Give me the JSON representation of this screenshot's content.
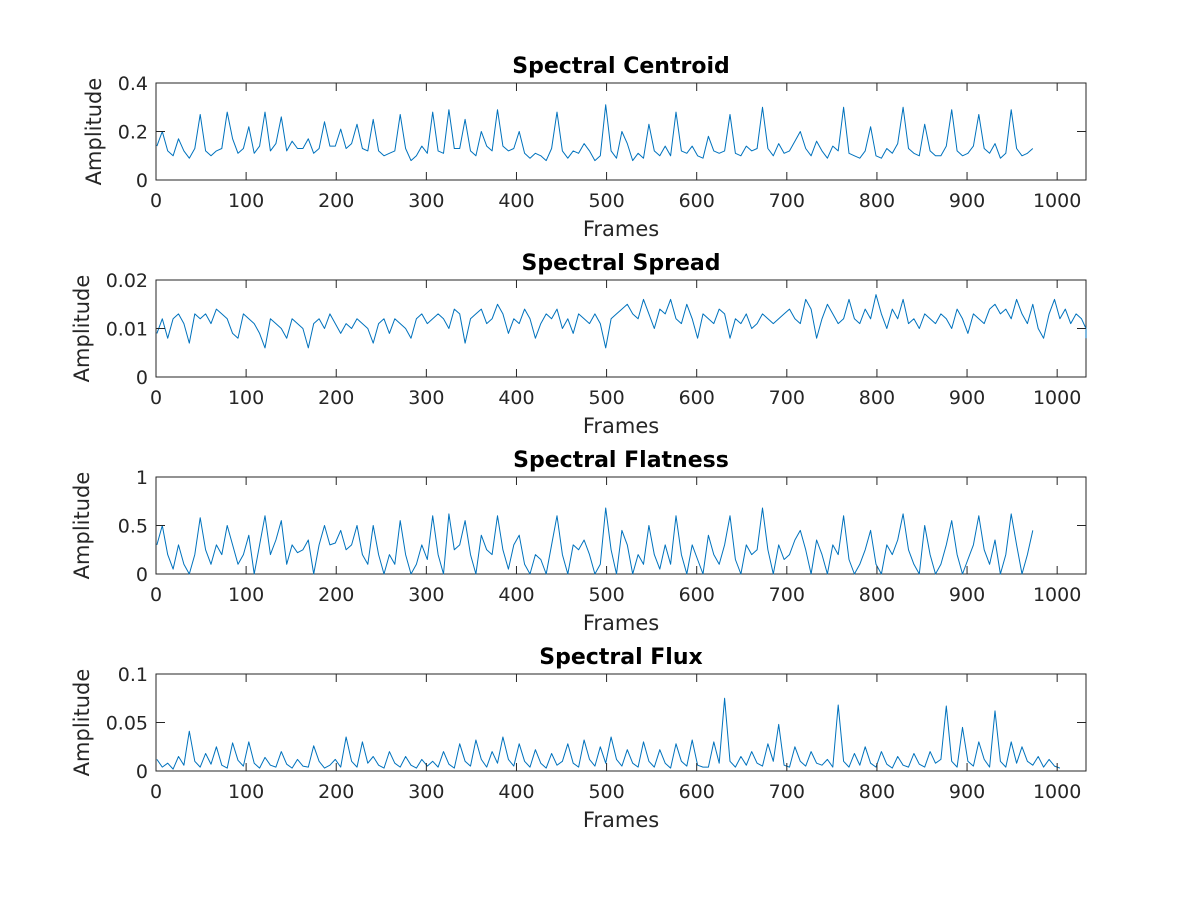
{
  "theme": {
    "line_color": "#0072bd",
    "axis_color": "#262626"
  },
  "chart_data": [
    {
      "type": "line",
      "title": "Spectral Centroid",
      "xlabel": "Frames",
      "ylabel": "Amplitude",
      "xlim": [
        0,
        1032
      ],
      "ylim": [
        0,
        0.4
      ],
      "xticks": [
        0,
        100,
        200,
        300,
        400,
        500,
        600,
        700,
        800,
        900,
        1000
      ],
      "xtick_labels": [
        "0",
        "100",
        "200",
        "300",
        "400",
        "500",
        "600",
        "700",
        "800",
        "900",
        "1000"
      ],
      "yticks": [
        0,
        0.2,
        0.4
      ],
      "ytick_labels": [
        "0",
        "0.2",
        "0.4"
      ],
      "grid": false,
      "series": [
        {
          "x_start": 1,
          "x_step": 6,
          "values": [
            0.14,
            0.2,
            0.12,
            0.1,
            0.17,
            0.12,
            0.09,
            0.13,
            0.27,
            0.12,
            0.1,
            0.12,
            0.13,
            0.28,
            0.17,
            0.11,
            0.13,
            0.22,
            0.11,
            0.14,
            0.28,
            0.12,
            0.15,
            0.26,
            0.12,
            0.16,
            0.13,
            0.13,
            0.17,
            0.11,
            0.13,
            0.24,
            0.14,
            0.14,
            0.21,
            0.13,
            0.15,
            0.23,
            0.13,
            0.12,
            0.25,
            0.12,
            0.1,
            0.11,
            0.12,
            0.27,
            0.13,
            0.08,
            0.1,
            0.14,
            0.11,
            0.28,
            0.12,
            0.11,
            0.29,
            0.13,
            0.13,
            0.25,
            0.12,
            0.1,
            0.2,
            0.14,
            0.12,
            0.29,
            0.14,
            0.12,
            0.13,
            0.2,
            0.11,
            0.09,
            0.11,
            0.1,
            0.08,
            0.13,
            0.28,
            0.12,
            0.09,
            0.12,
            0.11,
            0.15,
            0.12,
            0.08,
            0.1,
            0.31,
            0.12,
            0.09,
            0.2,
            0.15,
            0.08,
            0.11,
            0.09,
            0.23,
            0.12,
            0.1,
            0.14,
            0.1,
            0.28,
            0.12,
            0.11,
            0.14,
            0.1,
            0.09,
            0.18,
            0.12,
            0.11,
            0.12,
            0.27,
            0.11,
            0.1,
            0.14,
            0.12,
            0.13,
            0.3,
            0.13,
            0.1,
            0.15,
            0.11,
            0.12,
            0.16,
            0.2,
            0.13,
            0.1,
            0.16,
            0.12,
            0.09,
            0.14,
            0.12,
            0.3,
            0.11,
            0.1,
            0.09,
            0.12,
            0.22,
            0.1,
            0.09,
            0.13,
            0.11,
            0.15,
            0.3,
            0.13,
            0.11,
            0.1,
            0.23,
            0.12,
            0.1,
            0.1,
            0.14,
            0.29,
            0.12,
            0.1,
            0.11,
            0.14,
            0.27,
            0.13,
            0.11,
            0.15,
            0.09,
            0.11,
            0.29,
            0.13,
            0.1,
            0.11,
            0.13
          ]
        }
      ]
    },
    {
      "type": "line",
      "title": "Spectral Spread",
      "xlabel": "Frames",
      "ylabel": "Amplitude",
      "xlim": [
        0,
        1032
      ],
      "ylim": [
        0,
        0.02
      ],
      "xticks": [
        0,
        100,
        200,
        300,
        400,
        500,
        600,
        700,
        800,
        900,
        1000
      ],
      "xtick_labels": [
        "0",
        "100",
        "200",
        "300",
        "400",
        "500",
        "600",
        "700",
        "800",
        "900",
        "1000"
      ],
      "yticks": [
        0,
        0.01,
        0.02
      ],
      "ytick_labels": [
        "0",
        "0.01",
        "0.02"
      ],
      "grid": false,
      "series": [
        {
          "x_start": 1,
          "x_step": 6,
          "values": [
            0.009,
            0.012,
            0.008,
            0.012,
            0.013,
            0.011,
            0.007,
            0.013,
            0.012,
            0.013,
            0.011,
            0.014,
            0.013,
            0.012,
            0.009,
            0.008,
            0.013,
            0.012,
            0.011,
            0.009,
            0.006,
            0.012,
            0.011,
            0.01,
            0.008,
            0.012,
            0.011,
            0.01,
            0.006,
            0.011,
            0.012,
            0.01,
            0.013,
            0.011,
            0.009,
            0.011,
            0.01,
            0.012,
            0.011,
            0.01,
            0.007,
            0.011,
            0.012,
            0.009,
            0.012,
            0.011,
            0.01,
            0.008,
            0.012,
            0.013,
            0.011,
            0.012,
            0.013,
            0.012,
            0.01,
            0.014,
            0.013,
            0.007,
            0.012,
            0.013,
            0.014,
            0.011,
            0.012,
            0.015,
            0.013,
            0.009,
            0.012,
            0.011,
            0.014,
            0.012,
            0.008,
            0.011,
            0.013,
            0.012,
            0.014,
            0.01,
            0.012,
            0.009,
            0.013,
            0.012,
            0.011,
            0.013,
            0.011,
            0.006,
            0.012,
            0.013,
            0.014,
            0.015,
            0.013,
            0.012,
            0.016,
            0.013,
            0.01,
            0.014,
            0.013,
            0.016,
            0.012,
            0.011,
            0.015,
            0.012,
            0.008,
            0.013,
            0.012,
            0.011,
            0.014,
            0.013,
            0.008,
            0.012,
            0.011,
            0.013,
            0.01,
            0.011,
            0.013,
            0.012,
            0.011,
            0.012,
            0.013,
            0.014,
            0.012,
            0.011,
            0.016,
            0.014,
            0.008,
            0.012,
            0.015,
            0.013,
            0.011,
            0.012,
            0.016,
            0.012,
            0.011,
            0.014,
            0.012,
            0.017,
            0.013,
            0.01,
            0.014,
            0.012,
            0.016,
            0.011,
            0.012,
            0.01,
            0.013,
            0.012,
            0.011,
            0.013,
            0.012,
            0.01,
            0.014,
            0.012,
            0.009,
            0.013,
            0.012,
            0.011,
            0.014,
            0.015,
            0.013,
            0.014,
            0.012,
            0.016,
            0.013,
            0.011,
            0.015,
            0.01,
            0.008,
            0.013,
            0.016,
            0.012,
            0.014,
            0.011,
            0.013,
            0.012,
            0.01,
            0.008
          ]
        }
      ]
    },
    {
      "type": "line",
      "title": "Spectral Flatness",
      "xlabel": "Frames",
      "ylabel": "Amplitude",
      "xlim": [
        0,
        1032
      ],
      "ylim": [
        0,
        1
      ],
      "xticks": [
        0,
        100,
        200,
        300,
        400,
        500,
        600,
        700,
        800,
        900,
        1000
      ],
      "xtick_labels": [
        "0",
        "100",
        "200",
        "300",
        "400",
        "500",
        "600",
        "700",
        "800",
        "900",
        "1000"
      ],
      "yticks": [
        0,
        0.5,
        1
      ],
      "ytick_labels": [
        "0",
        "0.5",
        "1"
      ],
      "grid": false,
      "series": [
        {
          "x_start": 1,
          "x_step": 6,
          "values": [
            0.3,
            0.5,
            0.2,
            0.05,
            0.3,
            0.1,
            0.0,
            0.2,
            0.58,
            0.25,
            0.1,
            0.3,
            0.2,
            0.5,
            0.3,
            0.1,
            0.2,
            0.4,
            0.0,
            0.3,
            0.6,
            0.2,
            0.35,
            0.55,
            0.1,
            0.3,
            0.22,
            0.25,
            0.35,
            0.0,
            0.3,
            0.5,
            0.3,
            0.32,
            0.45,
            0.25,
            0.3,
            0.5,
            0.2,
            0.1,
            0.5,
            0.2,
            0.0,
            0.2,
            0.1,
            0.55,
            0.2,
            0.0,
            0.1,
            0.3,
            0.15,
            0.6,
            0.2,
            0.0,
            0.62,
            0.25,
            0.3,
            0.55,
            0.2,
            0.0,
            0.4,
            0.25,
            0.2,
            0.6,
            0.25,
            0.05,
            0.3,
            0.4,
            0.1,
            0.0,
            0.2,
            0.15,
            0.0,
            0.3,
            0.6,
            0.2,
            0.0,
            0.3,
            0.25,
            0.35,
            0.2,
            0.0,
            0.1,
            0.68,
            0.25,
            0.0,
            0.45,
            0.3,
            0.0,
            0.2,
            0.1,
            0.5,
            0.2,
            0.05,
            0.3,
            0.1,
            0.6,
            0.2,
            0.0,
            0.3,
            0.15,
            0.0,
            0.4,
            0.2,
            0.1,
            0.3,
            0.6,
            0.15,
            0.0,
            0.3,
            0.2,
            0.25,
            0.68,
            0.25,
            0.0,
            0.3,
            0.15,
            0.2,
            0.35,
            0.45,
            0.25,
            0.0,
            0.35,
            0.2,
            0.0,
            0.3,
            0.2,
            0.6,
            0.15,
            0.0,
            0.1,
            0.25,
            0.45,
            0.1,
            0.0,
            0.3,
            0.2,
            0.35,
            0.62,
            0.25,
            0.1,
            0.0,
            0.5,
            0.2,
            0.0,
            0.1,
            0.3,
            0.55,
            0.2,
            0.0,
            0.15,
            0.3,
            0.6,
            0.25,
            0.1,
            0.35,
            0.0,
            0.2,
            0.62,
            0.3,
            0.0,
            0.2,
            0.45
          ]
        }
      ]
    },
    {
      "type": "line",
      "title": "Spectral Flux",
      "xlabel": "Frames",
      "ylabel": "Amplitude",
      "xlim": [
        0,
        1032
      ],
      "ylim": [
        0,
        0.1
      ],
      "xticks": [
        0,
        100,
        200,
        300,
        400,
        500,
        600,
        700,
        800,
        900,
        1000
      ],
      "xtick_labels": [
        "0",
        "100",
        "200",
        "300",
        "400",
        "500",
        "600",
        "700",
        "800",
        "900",
        "1000"
      ],
      "yticks": [
        0,
        0.05,
        0.1
      ],
      "ytick_labels": [
        "0",
        "0.05",
        "0.1"
      ],
      "grid": false,
      "series": [
        {
          "x_start": 1,
          "x_step": 6,
          "values": [
            0.012,
            0.004,
            0.008,
            0.002,
            0.015,
            0.006,
            0.041,
            0.01,
            0.004,
            0.018,
            0.007,
            0.025,
            0.006,
            0.003,
            0.029,
            0.011,
            0.005,
            0.03,
            0.008,
            0.003,
            0.014,
            0.006,
            0.004,
            0.02,
            0.007,
            0.003,
            0.012,
            0.005,
            0.004,
            0.026,
            0.01,
            0.003,
            0.006,
            0.012,
            0.004,
            0.035,
            0.01,
            0.004,
            0.03,
            0.008,
            0.015,
            0.006,
            0.003,
            0.02,
            0.008,
            0.004,
            0.015,
            0.006,
            0.003,
            0.012,
            0.005,
            0.01,
            0.004,
            0.02,
            0.007,
            0.003,
            0.028,
            0.01,
            0.005,
            0.032,
            0.012,
            0.004,
            0.02,
            0.008,
            0.035,
            0.012,
            0.005,
            0.028,
            0.01,
            0.004,
            0.022,
            0.008,
            0.003,
            0.018,
            0.006,
            0.01,
            0.028,
            0.008,
            0.004,
            0.032,
            0.012,
            0.005,
            0.025,
            0.008,
            0.035,
            0.012,
            0.005,
            0.022,
            0.008,
            0.004,
            0.03,
            0.01,
            0.004,
            0.022,
            0.008,
            0.003,
            0.028,
            0.01,
            0.005,
            0.032,
            0.006,
            0.004,
            0.004,
            0.03,
            0.008,
            0.075,
            0.01,
            0.004,
            0.015,
            0.006,
            0.02,
            0.008,
            0.005,
            0.028,
            0.01,
            0.048,
            0.006,
            0.004,
            0.025,
            0.01,
            0.005,
            0.02,
            0.008,
            0.006,
            0.012,
            0.004,
            0.068,
            0.01,
            0.004,
            0.018,
            0.006,
            0.025,
            0.008,
            0.004,
            0.02,
            0.007,
            0.003,
            0.015,
            0.006,
            0.004,
            0.018,
            0.007,
            0.004,
            0.02,
            0.008,
            0.012,
            0.067,
            0.01,
            0.004,
            0.045,
            0.01,
            0.005,
            0.03,
            0.012,
            0.004,
            0.062,
            0.01,
            0.004,
            0.03,
            0.008,
            0.025,
            0.01,
            0.006,
            0.015,
            0.004,
            0.012,
            0.005,
            0.003
          ]
        }
      ]
    }
  ]
}
